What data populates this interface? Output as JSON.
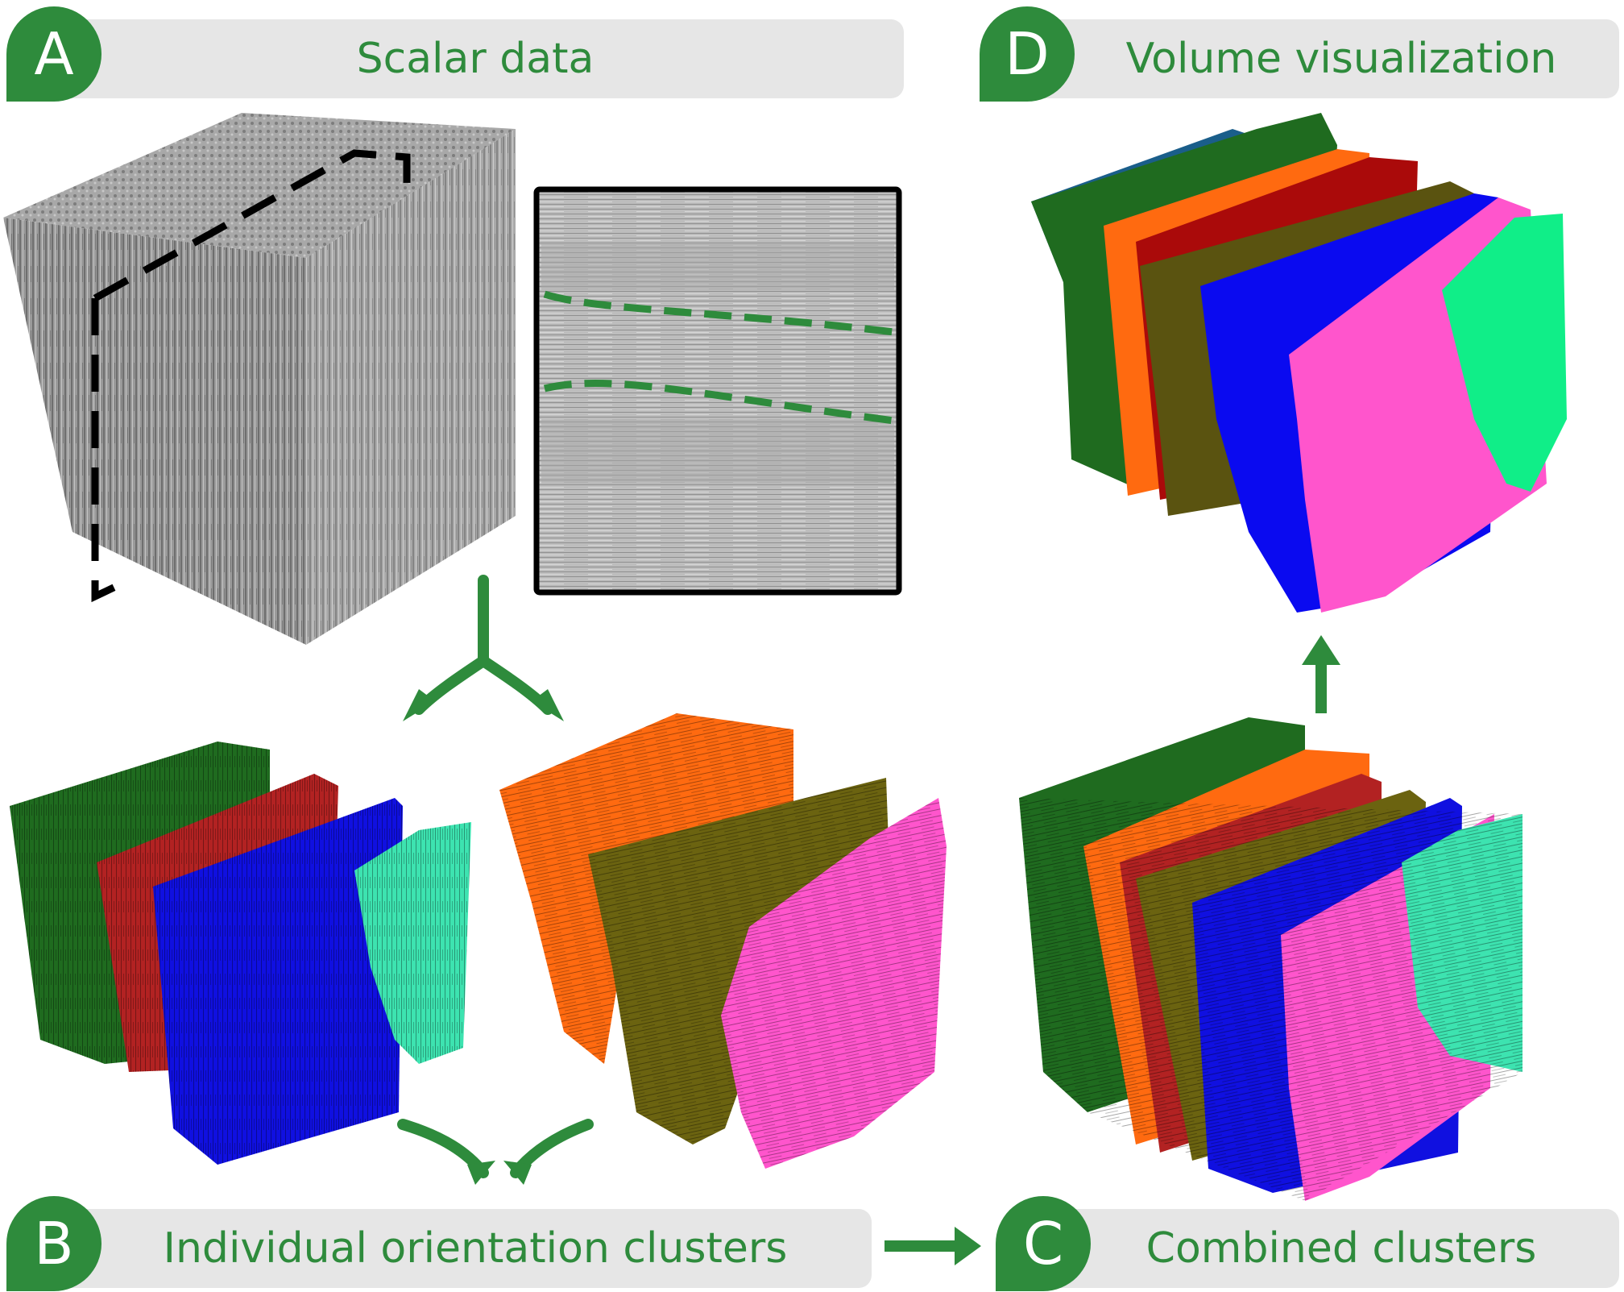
{
  "panels": {
    "a": {
      "badge": "A",
      "title": "Scalar data"
    },
    "b": {
      "badge": "B",
      "title": "Individual orientation clusters"
    },
    "c": {
      "badge": "C",
      "title": "Combined clusters"
    },
    "d": {
      "badge": "D",
      "title": "Volume visualization"
    }
  },
  "colors": {
    "accent": "#2e8b3c",
    "header_bg": "#e6e6e6",
    "cluster_dark_green": "#1f6b1f",
    "cluster_red": "#b22222",
    "cluster_blue": "#1010e0",
    "cluster_cyan": "#3de3b0",
    "cluster_orange": "#ff6a10",
    "cluster_olive": "#6b6310",
    "cluster_pink": "#ff55cc",
    "cluster_mint": "#10ee88",
    "cluster_steel_blue": "#1a5e8a"
  },
  "icons": [
    "split-arrow-icon",
    "merge-arrow-icon",
    "right-arrow-icon",
    "up-arrow-icon"
  ]
}
